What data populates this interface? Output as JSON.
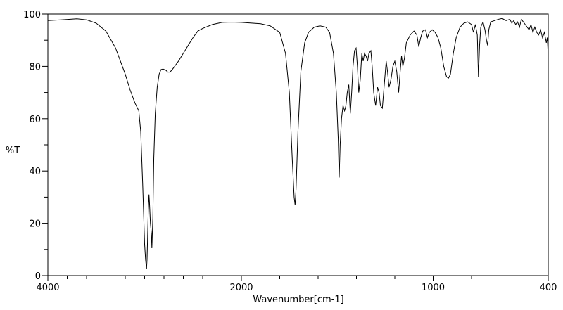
{
  "chart_data": {
    "type": "line",
    "title": "",
    "xlabel": "Wavenumber[cm-1]",
    "ylabel": "%T",
    "xlim": [
      4000,
      400
    ],
    "ylim": [
      0,
      100
    ],
    "x_reversed": true,
    "x_scale": "piecewise: 4000-2000 compressed (half scale) relative to 2000-400",
    "x_tick_labels": [
      {
        "value": 4000,
        "label": "4000"
      },
      {
        "value": 2000,
        "label": "2000"
      },
      {
        "value": 1000,
        "label": "1000"
      },
      {
        "value": 400,
        "label": "400"
      }
    ],
    "y_tick_labels": [
      {
        "value": 0,
        "label": "0"
      },
      {
        "value": 20,
        "label": "20"
      },
      {
        "value": 40,
        "label": "40"
      },
      {
        "value": 60,
        "label": "60"
      },
      {
        "value": 80,
        "label": "80"
      },
      {
        "value": 100,
        "label": "100"
      }
    ],
    "grid": false,
    "line_color": "#000000",
    "series": [
      {
        "points": [
          [
            4000,
            97.5
          ],
          [
            3850,
            97.8
          ],
          [
            3700,
            98.2
          ],
          [
            3600,
            97.8
          ],
          [
            3500,
            96.5
          ],
          [
            3400,
            93.5
          ],
          [
            3300,
            87
          ],
          [
            3200,
            77
          ],
          [
            3150,
            71
          ],
          [
            3100,
            66
          ],
          [
            3060,
            63
          ],
          [
            3040,
            55
          ],
          [
            3020,
            35
          ],
          [
            3000,
            12
          ],
          [
            2990,
            6
          ],
          [
            2980,
            2.5
          ],
          [
            2975,
            6
          ],
          [
            2962,
            25
          ],
          [
            2955,
            31
          ],
          [
            2950,
            28
          ],
          [
            2940,
            20
          ],
          [
            2930,
            16
          ],
          [
            2925,
            10.5
          ],
          [
            2915,
            22
          ],
          [
            2905,
            45
          ],
          [
            2890,
            62
          ],
          [
            2870,
            72
          ],
          [
            2850,
            77
          ],
          [
            2830,
            78.8
          ],
          [
            2810,
            79
          ],
          [
            2780,
            78.5
          ],
          [
            2760,
            77.8
          ],
          [
            2740,
            77.8
          ],
          [
            2720,
            78.5
          ],
          [
            2690,
            80
          ],
          [
            2650,
            82
          ],
          [
            2600,
            85
          ],
          [
            2550,
            88
          ],
          [
            2500,
            91
          ],
          [
            2450,
            93.5
          ],
          [
            2400,
            94.5
          ],
          [
            2300,
            96
          ],
          [
            2200,
            96.8
          ],
          [
            2100,
            96.9
          ],
          [
            2000,
            96.8
          ],
          [
            1900,
            96.3
          ],
          [
            1850,
            95.5
          ],
          [
            1800,
            93
          ],
          [
            1770,
            85
          ],
          [
            1750,
            70
          ],
          [
            1735,
            45
          ],
          [
            1725,
            30
          ],
          [
            1720,
            27
          ],
          [
            1715,
            33
          ],
          [
            1705,
            55
          ],
          [
            1690,
            78
          ],
          [
            1670,
            89
          ],
          [
            1650,
            93
          ],
          [
            1620,
            95
          ],
          [
            1590,
            95.5
          ],
          [
            1560,
            95
          ],
          [
            1540,
            93
          ],
          [
            1520,
            85
          ],
          [
            1505,
            70
          ],
          [
            1495,
            52
          ],
          [
            1490,
            37.5
          ],
          [
            1485,
            50
          ],
          [
            1478,
            60
          ],
          [
            1470,
            65
          ],
          [
            1462,
            63
          ],
          [
            1455,
            65
          ],
          [
            1448,
            70
          ],
          [
            1440,
            73
          ],
          [
            1432,
            62
          ],
          [
            1425,
            70
          ],
          [
            1418,
            80
          ],
          [
            1410,
            86
          ],
          [
            1402,
            87
          ],
          [
            1395,
            80
          ],
          [
            1388,
            70
          ],
          [
            1380,
            75
          ],
          [
            1372,
            85
          ],
          [
            1365,
            82
          ],
          [
            1358,
            85
          ],
          [
            1350,
            84
          ],
          [
            1342,
            82
          ],
          [
            1335,
            85
          ],
          [
            1325,
            86
          ],
          [
            1318,
            80
          ],
          [
            1310,
            70
          ],
          [
            1300,
            65
          ],
          [
            1290,
            72
          ],
          [
            1282,
            70
          ],
          [
            1275,
            65
          ],
          [
            1265,
            64
          ],
          [
            1255,
            73
          ],
          [
            1245,
            82
          ],
          [
            1238,
            78
          ],
          [
            1230,
            72
          ],
          [
            1220,
            75
          ],
          [
            1210,
            80
          ],
          [
            1200,
            82
          ],
          [
            1190,
            78
          ],
          [
            1180,
            70
          ],
          [
            1172,
            78
          ],
          [
            1165,
            84
          ],
          [
            1158,
            80
          ],
          [
            1150,
            83
          ],
          [
            1140,
            89
          ],
          [
            1120,
            92
          ],
          [
            1100,
            93.5
          ],
          [
            1085,
            92
          ],
          [
            1075,
            87.5
          ],
          [
            1065,
            91
          ],
          [
            1055,
            93.5
          ],
          [
            1040,
            94
          ],
          [
            1030,
            91
          ],
          [
            1020,
            93
          ],
          [
            1005,
            94
          ],
          [
            990,
            93
          ],
          [
            975,
            91
          ],
          [
            960,
            87
          ],
          [
            945,
            80
          ],
          [
            930,
            76
          ],
          [
            920,
            75.5
          ],
          [
            910,
            77
          ],
          [
            895,
            85
          ],
          [
            880,
            91
          ],
          [
            860,
            95
          ],
          [
            840,
            96.5
          ],
          [
            820,
            97
          ],
          [
            800,
            96
          ],
          [
            790,
            93
          ],
          [
            780,
            96
          ],
          [
            770,
            92
          ],
          [
            764,
            76
          ],
          [
            758,
            88
          ],
          [
            752,
            95
          ],
          [
            740,
            97
          ],
          [
            730,
            94
          ],
          [
            722,
            90
          ],
          [
            716,
            88
          ],
          [
            710,
            94
          ],
          [
            700,
            97
          ],
          [
            680,
            97.5
          ],
          [
            660,
            98
          ],
          [
            640,
            98.3
          ],
          [
            620,
            97.5
          ],
          [
            600,
            98
          ],
          [
            590,
            96.5
          ],
          [
            580,
            97.5
          ],
          [
            570,
            96
          ],
          [
            560,
            97
          ],
          [
            550,
            95
          ],
          [
            540,
            98
          ],
          [
            530,
            97
          ],
          [
            520,
            96
          ],
          [
            510,
            95
          ],
          [
            500,
            94
          ],
          [
            490,
            96
          ],
          [
            480,
            93
          ],
          [
            470,
            95
          ],
          [
            460,
            93
          ],
          [
            450,
            92
          ],
          [
            440,
            94
          ],
          [
            430,
            91
          ],
          [
            420,
            93
          ],
          [
            410,
            89
          ],
          [
            405,
            91
          ],
          [
            400,
            84
          ]
        ]
      }
    ]
  }
}
